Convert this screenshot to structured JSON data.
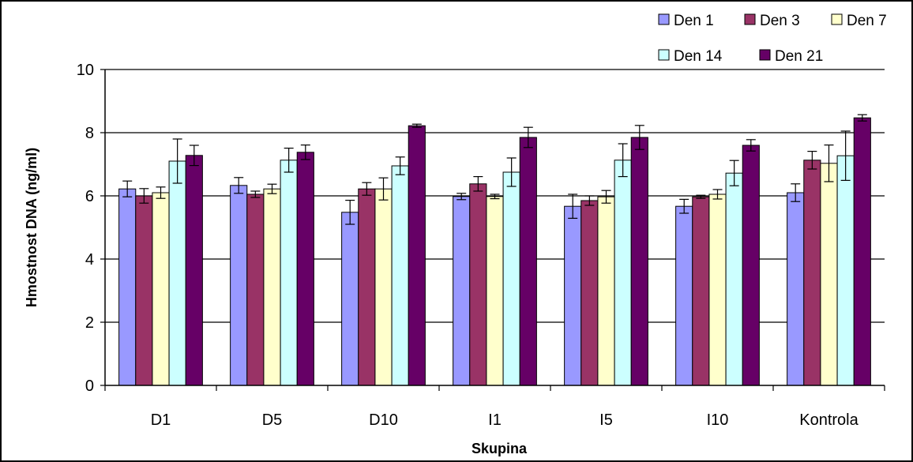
{
  "chart_data": {
    "type": "bar",
    "title": "",
    "xlabel": "Skupina",
    "ylabel": "Hmostnost DNA (ng/ml)",
    "ylim": [
      0,
      10
    ],
    "yticks": [
      0,
      2,
      4,
      6,
      8,
      10
    ],
    "grid": true,
    "legend_position": "top-right",
    "categories": [
      "D1",
      "D5",
      "D10",
      "I1",
      "I5",
      "I10",
      "Kontrola"
    ],
    "series": [
      {
        "name": "Den 1",
        "color": "#9999ff",
        "values": [
          6.22,
          6.33,
          5.48,
          5.98,
          5.67,
          5.67,
          6.1
        ],
        "errors": [
          0.25,
          0.25,
          0.38,
          0.1,
          0.38,
          0.22,
          0.28
        ]
      },
      {
        "name": "Den 3",
        "color": "#993366",
        "values": [
          6.0,
          6.05,
          6.22,
          6.38,
          5.85,
          5.97,
          7.13
        ],
        "errors": [
          0.23,
          0.1,
          0.2,
          0.23,
          0.15,
          0.05,
          0.28
        ]
      },
      {
        "name": "Den 7",
        "color": "#ffffcc",
        "values": [
          6.1,
          6.22,
          6.22,
          5.98,
          5.97,
          6.05,
          7.03
        ],
        "errors": [
          0.18,
          0.15,
          0.35,
          0.07,
          0.2,
          0.15,
          0.58
        ]
      },
      {
        "name": "Den 14",
        "color": "#ccffff",
        "values": [
          7.1,
          7.13,
          6.95,
          6.75,
          7.13,
          6.72,
          7.27
        ],
        "errors": [
          0.7,
          0.38,
          0.28,
          0.45,
          0.52,
          0.4,
          0.78
        ]
      },
      {
        "name": "Den 21",
        "color": "#660066",
        "values": [
          7.28,
          7.38,
          8.22,
          7.85,
          7.85,
          7.6,
          8.47
        ],
        "errors": [
          0.32,
          0.23,
          0.05,
          0.32,
          0.38,
          0.18,
          0.1
        ]
      }
    ]
  }
}
